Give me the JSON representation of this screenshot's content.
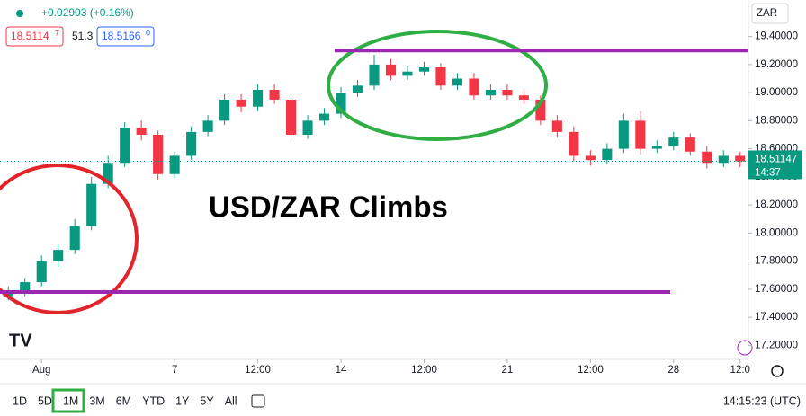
{
  "header": {
    "change": "+0.02903 (+0.16%)",
    "sell_price": "18.5114",
    "sell_price_sup": "7",
    "spread": "51.3",
    "buy_price": "18.5166",
    "buy_price_sup": "0",
    "currency": "ZAR"
  },
  "chart_data": {
    "type": "candlestick",
    "title": "USD/ZAR Climbs",
    "open": [
      17.55,
      17.58,
      17.65,
      17.8,
      17.88,
      18.05,
      18.35,
      18.5,
      18.75,
      18.7,
      18.42,
      18.55,
      18.72,
      18.8,
      18.95,
      18.9,
      19.02,
      18.95,
      18.7,
      18.8,
      18.85,
      19.0,
      19.05,
      19.2,
      19.12,
      19.15,
      19.18,
      19.05,
      19.1,
      18.98,
      19.02,
      18.98,
      18.95,
      18.8,
      18.72,
      18.55,
      18.52,
      18.6,
      18.8,
      18.6,
      18.62,
      18.68,
      18.58,
      18.5,
      18.55
    ],
    "high": [
      17.62,
      17.68,
      17.84,
      17.92,
      18.1,
      18.4,
      18.55,
      18.79,
      18.8,
      18.73,
      18.58,
      18.76,
      18.84,
      18.99,
      18.99,
      19.06,
      19.06,
      18.98,
      18.84,
      18.89,
      19.04,
      19.09,
      19.27,
      19.24,
      19.19,
      19.22,
      19.21,
      19.14,
      19.14,
      19.06,
      19.06,
      19.01,
      18.98,
      18.84,
      18.76,
      18.59,
      18.64,
      18.85,
      18.87,
      18.66,
      18.72,
      18.71,
      18.62,
      18.59,
      18.58
    ],
    "low": [
      17.52,
      17.55,
      17.62,
      17.76,
      17.85,
      18.02,
      18.32,
      18.47,
      18.66,
      18.38,
      18.39,
      18.52,
      18.69,
      18.77,
      18.86,
      18.87,
      18.92,
      18.66,
      18.67,
      18.77,
      18.82,
      18.97,
      19.02,
      19.09,
      19.09,
      19.12,
      19.02,
      19.02,
      18.95,
      18.95,
      18.95,
      18.92,
      18.77,
      18.68,
      18.51,
      18.48,
      18.49,
      18.57,
      18.56,
      18.57,
      18.59,
      18.55,
      18.46,
      18.47,
      18.47
    ],
    "close": [
      17.58,
      17.65,
      17.8,
      17.88,
      18.05,
      18.35,
      18.5,
      18.75,
      18.7,
      18.42,
      18.55,
      18.72,
      18.8,
      18.95,
      18.9,
      19.02,
      18.95,
      18.7,
      18.8,
      18.85,
      19.0,
      19.05,
      19.2,
      19.12,
      19.15,
      19.18,
      19.05,
      19.1,
      18.98,
      19.02,
      18.98,
      18.95,
      18.8,
      18.72,
      18.55,
      18.52,
      18.6,
      18.8,
      18.6,
      18.62,
      18.68,
      18.58,
      18.5,
      18.55,
      18.51
    ],
    "up_color": "#089981",
    "down_color": "#f23645",
    "ylim": [
      17.1,
      19.66
    ],
    "yticks": [
      {
        "value": 17.2,
        "label": "17.20000"
      },
      {
        "value": 17.4,
        "label": "17.40000"
      },
      {
        "value": 17.6,
        "label": "17.60000"
      },
      {
        "value": 17.8,
        "label": "17.80000"
      },
      {
        "value": 18,
        "label": "18.00000"
      },
      {
        "value": 18.2,
        "label": "18.20000"
      },
      {
        "value": 18.4,
        "label": "18.40000"
      },
      {
        "value": 18.6,
        "label": "18.60000"
      },
      {
        "value": 18.8,
        "label": "18.80000"
      },
      {
        "value": 19,
        "label": "19.00000"
      },
      {
        "value": 19.2,
        "label": "19.20000"
      },
      {
        "value": 19.4,
        "label": "19.40000"
      }
    ],
    "xticks": [
      {
        "value": 2,
        "label": "Aug"
      },
      {
        "value": 10,
        "label": "7"
      },
      {
        "value": 15,
        "label": "12:00"
      },
      {
        "value": 20,
        "label": "14"
      },
      {
        "value": 25,
        "label": "12:00"
      },
      {
        "value": 30,
        "label": "21"
      },
      {
        "value": 35,
        "label": "12:00"
      },
      {
        "value": 40,
        "label": "28"
      },
      {
        "value": 44,
        "label": "12:0"
      }
    ],
    "hlines": [
      {
        "value": 19.3,
        "color": "#9c27b0"
      },
      {
        "value": 17.58,
        "color": "#9c27b0"
      }
    ],
    "last_price": {
      "value": 18.51147,
      "label": "18.51147"
    },
    "countdown": "14:37"
  },
  "toolbar": {
    "ranges": [
      "1D",
      "5D",
      "1M",
      "3M",
      "6M",
      "YTD",
      "1Y",
      "5Y",
      "All"
    ],
    "clock": "14:15:23 (UTC)"
  }
}
